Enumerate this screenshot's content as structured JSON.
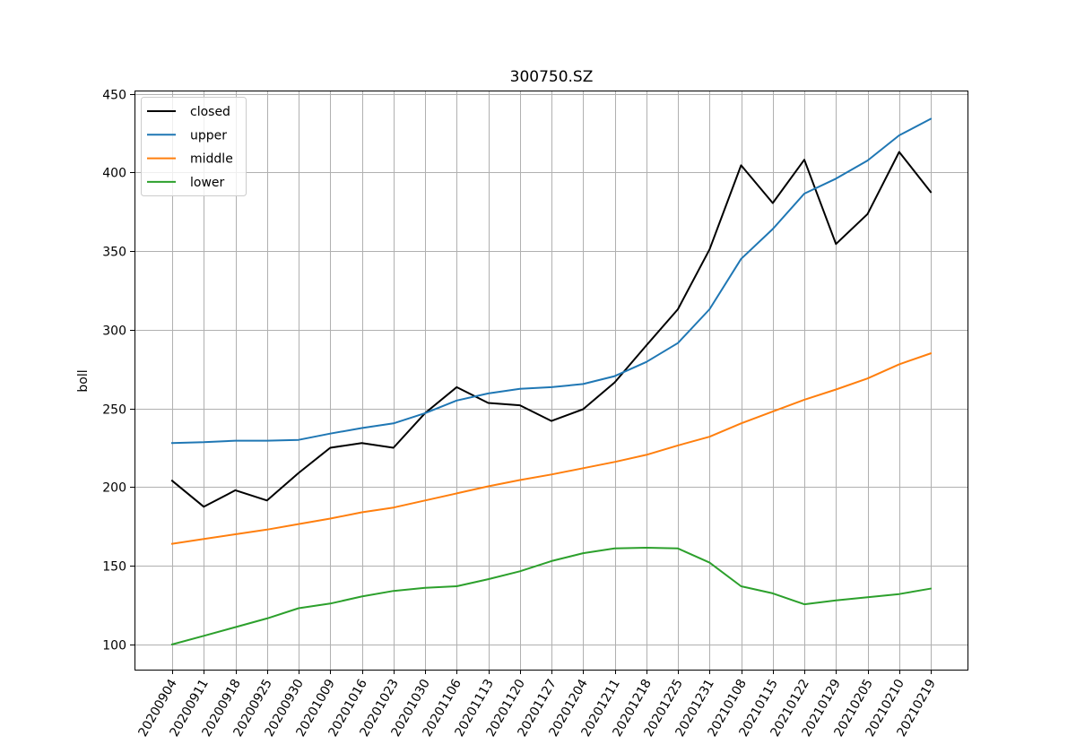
{
  "chart_data": {
    "type": "line",
    "title": "300750.SZ",
    "xlabel": "",
    "ylabel": "boll",
    "ylim": [
      84,
      452
    ],
    "yticks": [
      100,
      150,
      200,
      250,
      300,
      350,
      400,
      450
    ],
    "grid": true,
    "legend_position": "top-left",
    "x": [
      "20200904",
      "20200911",
      "20200918",
      "20200925",
      "20200930",
      "20201009",
      "20201016",
      "20201023",
      "20201030",
      "20201106",
      "20201113",
      "20201120",
      "20201127",
      "20201204",
      "20201211",
      "20201218",
      "20201225",
      "20201231",
      "20210108",
      "20210115",
      "20210122",
      "20210129",
      "20210205",
      "20210210",
      "20210219"
    ],
    "series": [
      {
        "name": "closed",
        "color": "#000000",
        "values": [
          204,
          187.5,
          198,
          191.5,
          209,
          225,
          228,
          225,
          247,
          263.5,
          253.5,
          252,
          242,
          249.5,
          266.5,
          290,
          313,
          351,
          404.5,
          380.5,
          408,
          354.5,
          373.5,
          413,
          387.5
        ]
      },
      {
        "name": "upper",
        "color": "#1f77b4",
        "values": [
          228,
          228.5,
          229.5,
          229.5,
          230,
          234,
          237.5,
          240.5,
          247,
          255,
          259.5,
          262.5,
          263.5,
          265.5,
          270.5,
          279.5,
          291.5,
          313,
          345,
          364,
          386.5,
          396,
          407.5,
          423.5,
          434
        ]
      },
      {
        "name": "middle",
        "color": "#ff7f0e",
        "values": [
          164,
          167,
          170,
          173,
          176.5,
          180,
          184,
          187,
          191.5,
          196,
          200.5,
          204.5,
          208,
          212,
          216,
          220.5,
          226.5,
          232,
          240.5,
          248,
          255.5,
          262,
          269,
          278,
          285
        ]
      },
      {
        "name": "lower",
        "color": "#2ca02c",
        "values": [
          100,
          105.5,
          111,
          116.5,
          123,
          126,
          130.5,
          134,
          136,
          137,
          141.5,
          146.5,
          153,
          158,
          161,
          161.5,
          161,
          152,
          137,
          132.5,
          125.5,
          128,
          130,
          132,
          135.5
        ]
      }
    ]
  }
}
